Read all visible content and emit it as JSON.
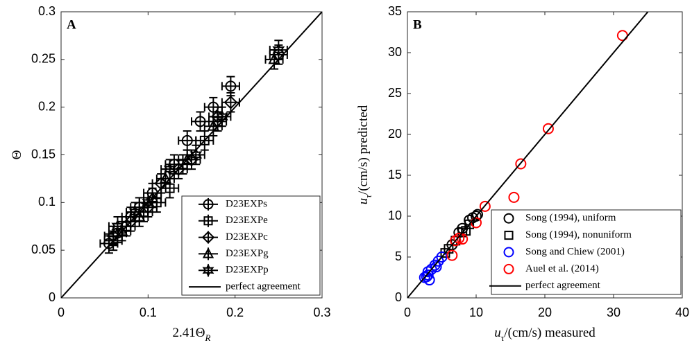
{
  "chart_data": [
    {
      "type": "scatter",
      "panel_label": "A",
      "xlabel": [
        {
          "text": "2.41Θ"
        },
        {
          "sub": "R"
        }
      ],
      "ylabel": [
        {
          "text": "Θ"
        }
      ],
      "xlim": [
        0,
        0.3
      ],
      "ylim": [
        0,
        0.3
      ],
      "xticks": [
        0,
        0.1,
        0.2,
        0.3
      ],
      "yticks": [
        0,
        0.05,
        0.1,
        0.15,
        0.2,
        0.25,
        0.3
      ],
      "legend": "southeast",
      "series": [
        {
          "name": "D23EXPs",
          "color": "#000000",
          "marker": "circle",
          "xerr": 0.01,
          "yerr": 0.01,
          "x": [
            0.055,
            0.065,
            0.08,
            0.09,
            0.105,
            0.13,
            0.145,
            0.16,
            0.175,
            0.195,
            0.25
          ],
          "values": [
            0.057,
            0.068,
            0.085,
            0.095,
            0.11,
            0.14,
            0.165,
            0.185,
            0.2,
            0.222,
            0.255
          ]
        },
        {
          "name": "D23EXPe",
          "color": "#000000",
          "marker": "square",
          "xerr": 0.01,
          "yerr": 0.01,
          "x": [
            0.06,
            0.075,
            0.095,
            0.11,
            0.125,
            0.14,
            0.165,
            0.18
          ],
          "values": [
            0.06,
            0.075,
            0.09,
            0.1,
            0.115,
            0.14,
            0.165,
            0.185
          ]
        },
        {
          "name": "D23EXPc",
          "color": "#000000",
          "marker": "diamond",
          "xerr": 0.01,
          "yerr": 0.01,
          "x": [
            0.06,
            0.08,
            0.1,
            0.115,
            0.135,
            0.15,
            0.18,
            0.195
          ],
          "values": [
            0.065,
            0.08,
            0.095,
            0.12,
            0.135,
            0.145,
            0.19,
            0.205
          ]
        },
        {
          "name": "D23EXPg",
          "color": "#000000",
          "marker": "triangle",
          "xerr": 0.01,
          "yerr": 0.01,
          "x": [
            0.07,
            0.09,
            0.105,
            0.12,
            0.145,
            0.175,
            0.245
          ],
          "values": [
            0.07,
            0.085,
            0.105,
            0.125,
            0.145,
            0.18,
            0.25
          ]
        },
        {
          "name": "D23EXPp",
          "color": "#000000",
          "marker": "hexagram",
          "xerr": 0.01,
          "yerr": 0.01,
          "x": [
            0.065,
            0.085,
            0.1,
            0.125,
            0.155,
            0.185,
            0.25
          ],
          "values": [
            0.075,
            0.09,
            0.1,
            0.135,
            0.15,
            0.19,
            0.26
          ]
        },
        {
          "name": "perfect agreement",
          "color": "#000000",
          "marker": "line",
          "x": [
            0,
            0.3
          ],
          "values": [
            0,
            0.3
          ]
        }
      ]
    },
    {
      "type": "scatter",
      "panel_label": "B",
      "xlabel": [
        {
          "text": "u"
        },
        {
          "sub": "τ"
        },
        {
          "text": "/(cm/s) measured"
        }
      ],
      "ylabel": [
        {
          "text": "u"
        },
        {
          "sub": "τ"
        },
        {
          "text": "/(cm/s) predicted"
        }
      ],
      "xlim": [
        0,
        40
      ],
      "ylim": [
        0,
        35
      ],
      "xticks": [
        0,
        10,
        20,
        30,
        40
      ],
      "yticks": [
        0,
        5,
        10,
        15,
        20,
        25,
        30,
        35
      ],
      "legend": "southeast",
      "series": [
        {
          "name": "Song (1994), uniform",
          "color": "#000000",
          "marker": "circle",
          "x": [
            6.5,
            7,
            7.5,
            8,
            9,
            9.5,
            10,
            10.2
          ],
          "values": [
            6.5,
            7,
            8,
            8.5,
            9.5,
            9.8,
            10,
            10.2
          ]
        },
        {
          "name": "Song (1994), nonuniform",
          "color": "#000000",
          "marker": "square",
          "x": [
            5.5,
            6,
            7,
            8,
            8.5,
            9
          ],
          "values": [
            5.5,
            6,
            7,
            8,
            8.2,
            9
          ]
        },
        {
          "name": "Song and Chiew (2001)",
          "color": "#0000ff",
          "marker": "circle",
          "x": [
            2.5,
            2.8,
            3,
            3,
            3.2,
            3.5,
            4,
            4.2,
            4.5,
            5
          ],
          "values": [
            2.5,
            2.6,
            2.8,
            3.2,
            2.2,
            3.5,
            4,
            3.8,
            4.5,
            5
          ]
        },
        {
          "name": "Auel et al. (2014)",
          "color": "#ff0000",
          "marker": "circle",
          "x": [
            6.5,
            7,
            7.5,
            8,
            10,
            11.3,
            15.5,
            16.5,
            20.5,
            31.3
          ],
          "values": [
            5.2,
            7,
            7.3,
            7.2,
            9.2,
            11.2,
            12.3,
            16.4,
            20.7,
            32.1
          ]
        },
        {
          "name": "perfect agreement",
          "color": "#000000",
          "marker": "line",
          "x": [
            0,
            35
          ],
          "values": [
            0,
            35
          ]
        }
      ]
    }
  ]
}
